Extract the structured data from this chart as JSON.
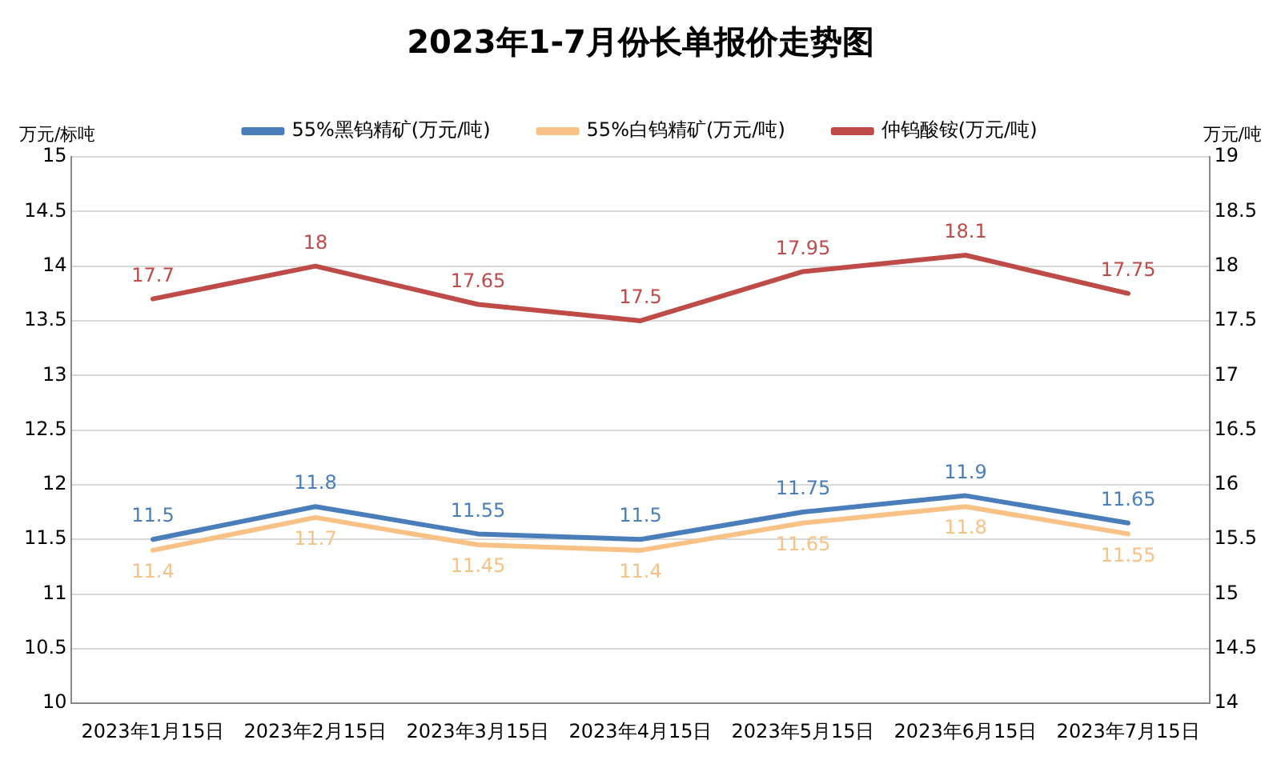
{
  "chart_data": {
    "type": "line",
    "title": "2023年1-7月份长单报价走势图",
    "ylabel": "万元/标吨",
    "y2label": "万元/吨",
    "categories": [
      "2023年1月15日",
      "2023年2月15日",
      "2023年3月15日",
      "2023年4月15日",
      "2023年5月15日",
      "2023年6月15日",
      "2023年7月15日"
    ],
    "series": [
      {
        "name": "55%黑钨精矿(万元/吨)",
        "color": "#4a7ebb",
        "values": [
          11.5,
          11.8,
          11.55,
          11.5,
          11.75,
          11.9,
          11.65
        ]
      },
      {
        "name": "55%白钨精矿(万元/吨)",
        "color": "#f8c185",
        "values": [
          11.4,
          11.7,
          11.45,
          11.4,
          11.65,
          11.8,
          11.55
        ]
      },
      {
        "name": "仲钨酸铵(万元/吨)",
        "color": "#be4b48",
        "axis": "y2",
        "values": [
          17.7,
          18,
          17.65,
          17.5,
          17.95,
          18.1,
          17.75
        ]
      }
    ],
    "ylim": [
      10,
      15
    ],
    "yticks": [
      10,
      10.5,
      11,
      11.5,
      12,
      12.5,
      13,
      13.5,
      14,
      14.5,
      15
    ],
    "y2lim": [
      14,
      19
    ],
    "y2ticks": [
      14,
      14.5,
      15,
      15.5,
      16,
      16.5,
      17,
      17.5,
      18,
      18.5,
      19
    ],
    "grid": "y",
    "legend": "top",
    "marker": "none",
    "line_style": "solid",
    "data_labels": true
  }
}
